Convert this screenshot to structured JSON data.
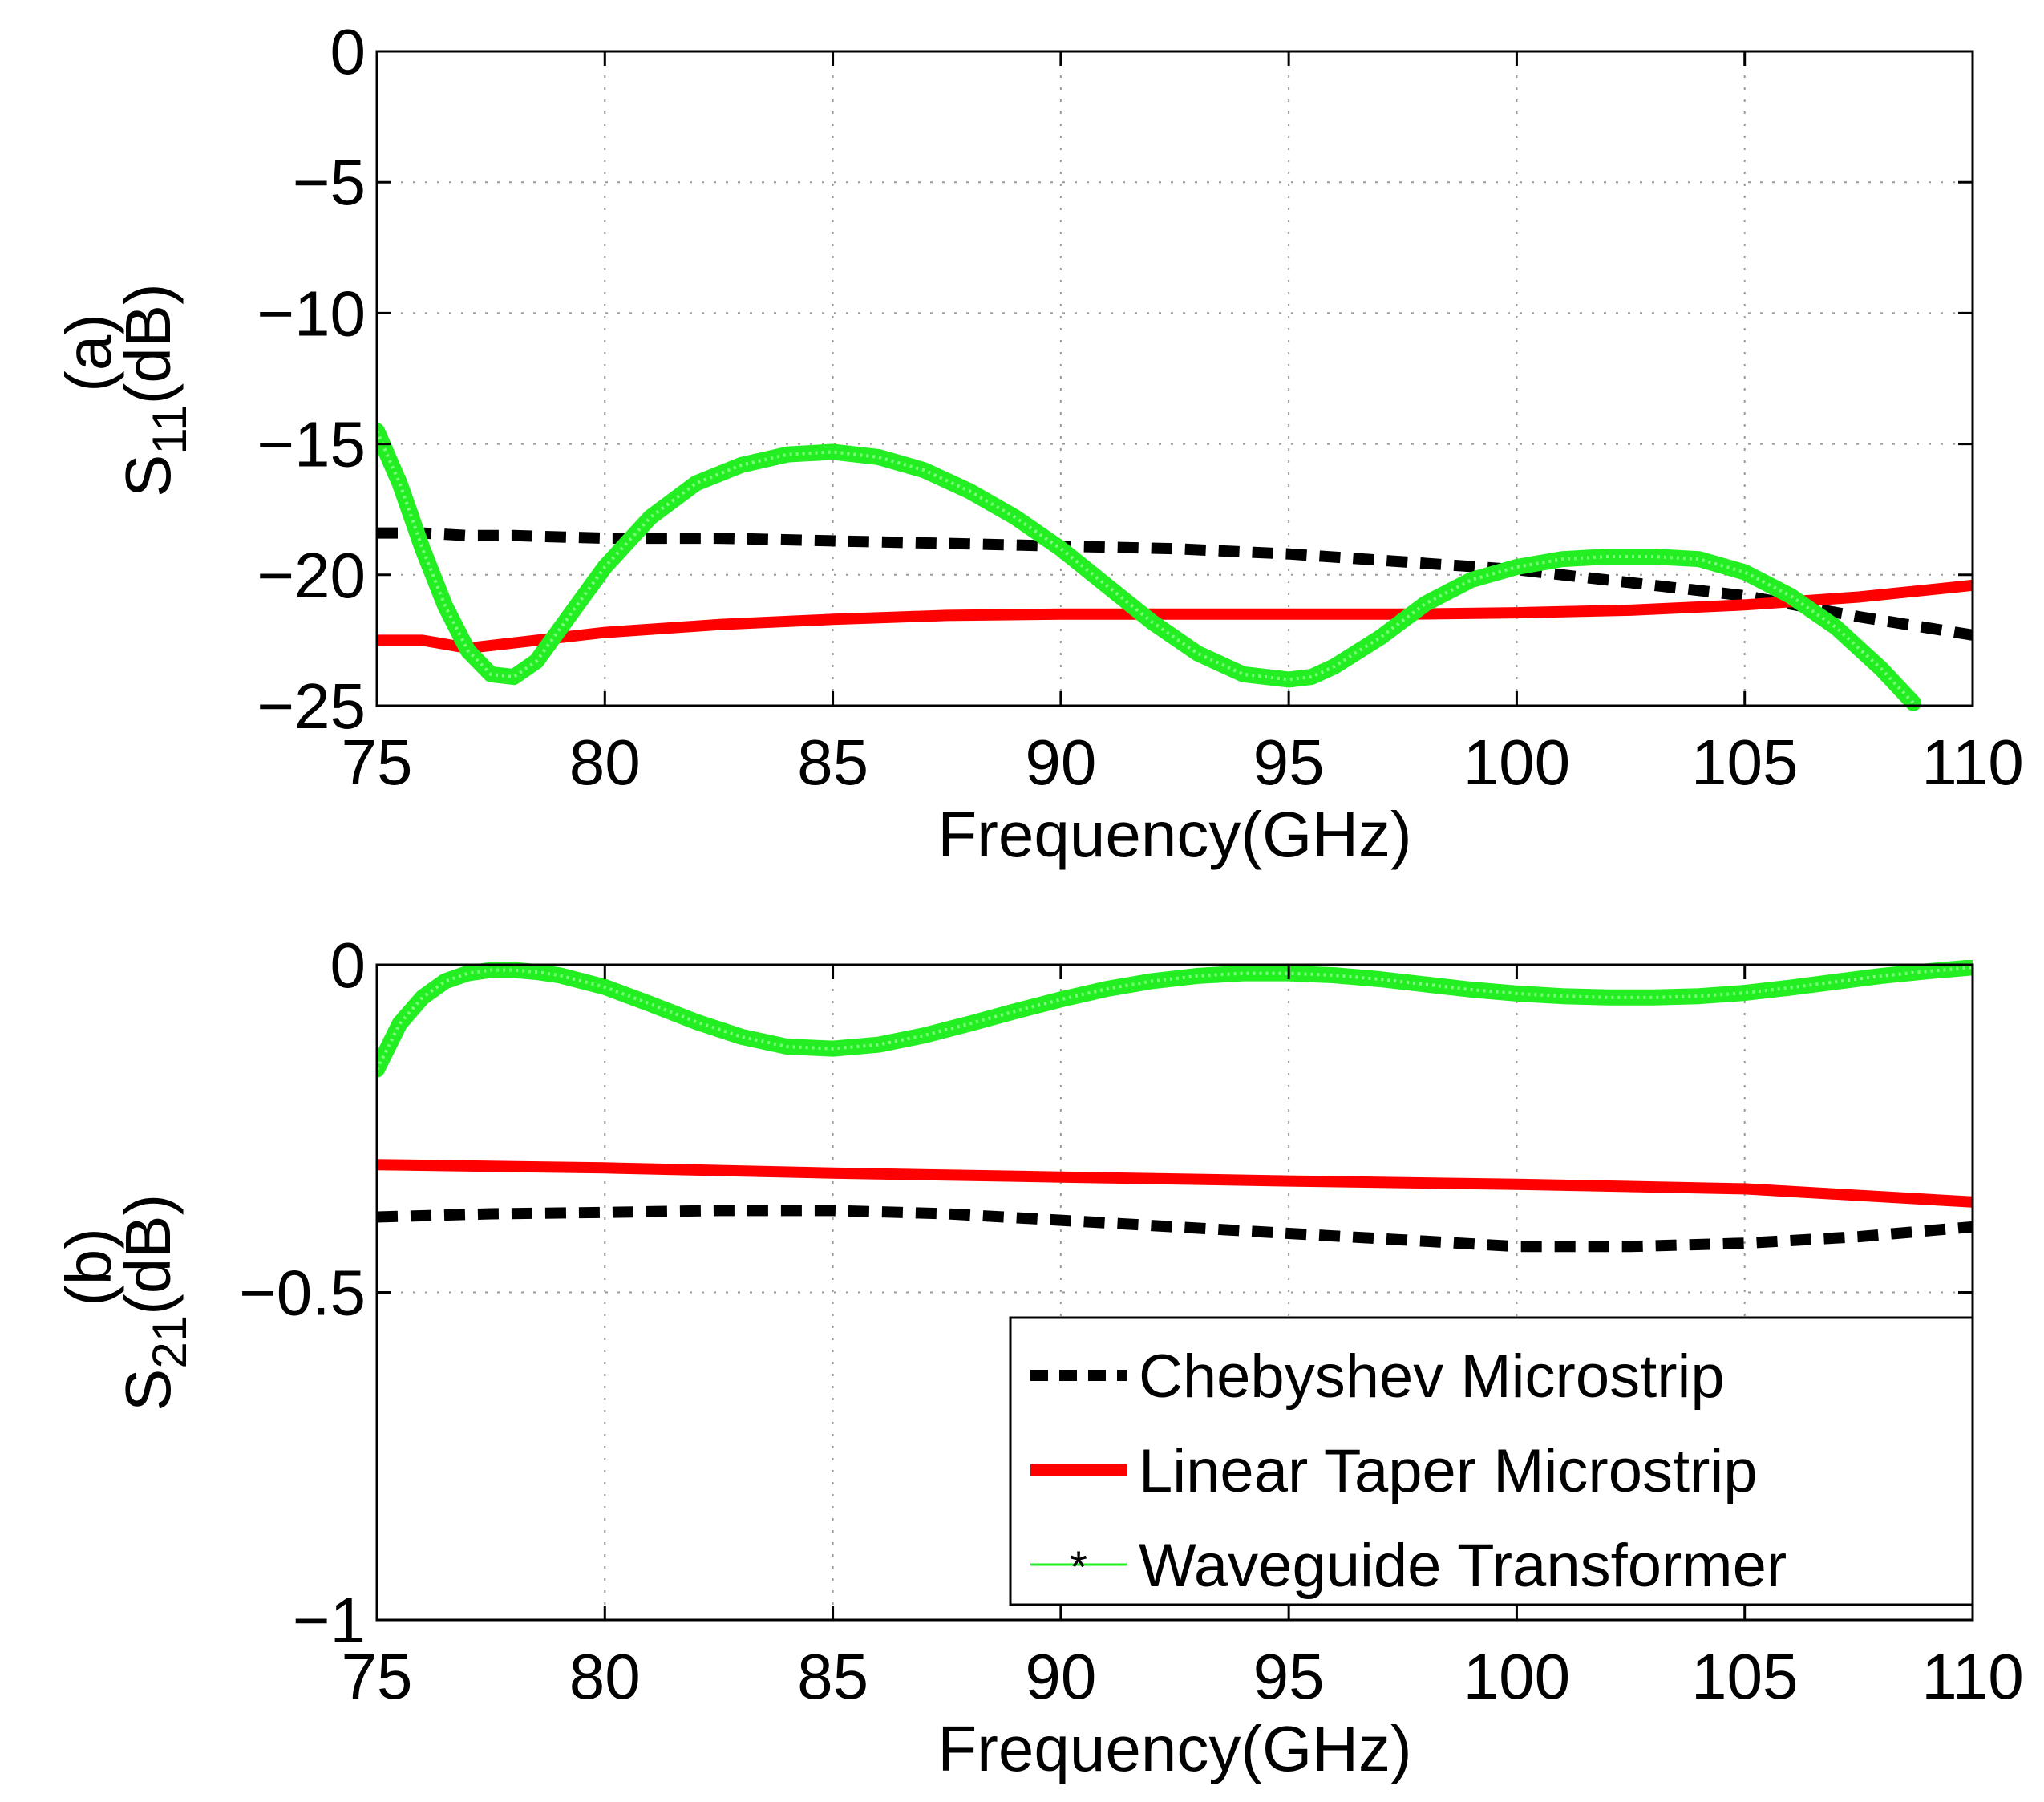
{
  "chart_data": [
    {
      "type": "line",
      "panel_label": "(a)",
      "ylabel_main": "S",
      "ylabel_sub": "11",
      "ylabel_unit": "(dB)",
      "xlabel": "Frequency(GHz)",
      "xlim": [
        75,
        110
      ],
      "ylim": [
        -25,
        0
      ],
      "grid": true,
      "x_ticks": [
        75,
        80,
        85,
        90,
        95,
        100,
        105,
        110
      ],
      "y_ticks": [
        0,
        -5,
        -10,
        -15,
        -20,
        -25
      ],
      "x_tick_labels": [
        "75",
        "80",
        "85",
        "90",
        "95",
        "100",
        "105",
        "110"
      ],
      "y_tick_labels": [
        "0",
        "−5",
        "−10",
        "−15",
        "−20",
        "−25"
      ],
      "series": [
        {
          "name": "Chebyshev Microstrip",
          "color": "#000000",
          "style": "dashed",
          "x": [
            75,
            76,
            77,
            78,
            80,
            82.5,
            85,
            87.5,
            90,
            92.5,
            95,
            97.5,
            100,
            102.5,
            105,
            107.5,
            110
          ],
          "y": [
            -18.4,
            -18.4,
            -18.5,
            -18.5,
            -18.6,
            -18.6,
            -18.7,
            -18.8,
            -18.9,
            -19.0,
            -19.2,
            -19.5,
            -19.8,
            -20.3,
            -20.8,
            -21.6,
            -22.3
          ]
        },
        {
          "name": "Linear Taper Microstrip",
          "color": "#ff0000",
          "style": "solid",
          "x": [
            75,
            76,
            77,
            78,
            79,
            80,
            82.5,
            85,
            87.5,
            90,
            92.5,
            95,
            97.5,
            100,
            102.5,
            105,
            107.5,
            110
          ],
          "y": [
            -22.5,
            -22.5,
            -22.8,
            -22.6,
            -22.4,
            -22.2,
            -21.9,
            -21.7,
            -21.55,
            -21.5,
            -21.5,
            -21.5,
            -21.5,
            -21.45,
            -21.35,
            -21.15,
            -20.85,
            -20.4
          ]
        },
        {
          "name": "Waveguide Transformer",
          "color": "#22ee22",
          "style": "solid-star",
          "x": [
            75,
            75.5,
            76,
            76.5,
            77,
            77.5,
            78,
            78.5,
            79,
            80,
            81,
            82,
            83,
            84,
            85,
            86,
            87,
            88,
            89,
            90,
            91,
            92,
            93,
            94,
            95,
            95.5,
            96,
            97,
            98,
            99,
            100,
            101,
            102,
            103,
            104,
            105,
            106,
            107,
            108,
            108.7
          ],
          "y": [
            -14.5,
            -16.5,
            -19.0,
            -21.2,
            -22.9,
            -23.8,
            -23.9,
            -23.3,
            -22.1,
            -19.7,
            -17.8,
            -16.5,
            -15.8,
            -15.4,
            -15.3,
            -15.5,
            -16.0,
            -16.8,
            -17.8,
            -19.0,
            -20.4,
            -21.8,
            -23.0,
            -23.8,
            -24.0,
            -23.9,
            -23.5,
            -22.4,
            -21.1,
            -20.2,
            -19.7,
            -19.4,
            -19.3,
            -19.3,
            -19.4,
            -19.9,
            -20.8,
            -22.0,
            -23.6,
            -24.9
          ]
        }
      ]
    },
    {
      "type": "line",
      "panel_label": "(b)",
      "ylabel_main": "S",
      "ylabel_sub": "21",
      "ylabel_unit": "(dB)",
      "xlabel": "Frequency(GHz)",
      "xlim": [
        75,
        110
      ],
      "ylim": [
        -1,
        0
      ],
      "grid": true,
      "x_ticks": [
        75,
        80,
        85,
        90,
        95,
        100,
        105,
        110
      ],
      "y_ticks": [
        0,
        -0.5,
        -1
      ],
      "x_tick_labels": [
        "75",
        "80",
        "85",
        "90",
        "95",
        "100",
        "105",
        "110"
      ],
      "y_tick_labels": [
        "0",
        "−0.5",
        "−1"
      ],
      "legend_position": "bottom-right",
      "series": [
        {
          "name": "Chebyshev Microstrip",
          "color": "#000000",
          "style": "dashed",
          "x": [
            75,
            77.5,
            80,
            82.5,
            85,
            87.5,
            90,
            92.5,
            95,
            97.5,
            100,
            102.5,
            105,
            107.5,
            110
          ],
          "y": [
            -0.385,
            -0.38,
            -0.378,
            -0.375,
            -0.375,
            -0.38,
            -0.39,
            -0.4,
            -0.41,
            -0.42,
            -0.43,
            -0.43,
            -0.425,
            -0.415,
            -0.4
          ]
        },
        {
          "name": "Linear Taper Microstrip",
          "color": "#ff0000",
          "style": "solid",
          "x": [
            75,
            80,
            85,
            90,
            95,
            100,
            105,
            110
          ],
          "y": [
            -0.305,
            -0.31,
            -0.318,
            -0.324,
            -0.33,
            -0.335,
            -0.342,
            -0.362
          ]
        },
        {
          "name": "Waveguide Transformer",
          "color": "#22ee22",
          "style": "solid-star",
          "x": [
            75,
            75.5,
            76,
            76.5,
            77,
            77.5,
            78,
            78.5,
            79,
            80,
            81,
            82,
            83,
            84,
            85,
            86,
            87,
            88,
            89,
            90,
            91,
            92,
            93,
            94,
            95,
            96,
            97,
            98,
            99,
            100,
            101,
            102,
            103,
            104,
            105,
            106,
            107,
            108,
            109,
            110
          ],
          "y": [
            -0.16,
            -0.09,
            -0.05,
            -0.025,
            -0.013,
            -0.008,
            -0.008,
            -0.011,
            -0.016,
            -0.034,
            -0.06,
            -0.087,
            -0.11,
            -0.125,
            -0.128,
            -0.122,
            -0.108,
            -0.09,
            -0.071,
            -0.053,
            -0.037,
            -0.025,
            -0.017,
            -0.013,
            -0.013,
            -0.016,
            -0.022,
            -0.03,
            -0.038,
            -0.044,
            -0.048,
            -0.05,
            -0.05,
            -0.048,
            -0.043,
            -0.035,
            -0.026,
            -0.017,
            -0.01,
            -0.004
          ]
        }
      ]
    }
  ],
  "legend": {
    "items": [
      {
        "label": "Chebyshev Microstrip",
        "color": "#000000",
        "style": "dashed"
      },
      {
        "label": "Linear Taper Microstrip",
        "color": "#ff0000",
        "style": "solid"
      },
      {
        "label": "Waveguide Transformer",
        "color": "#22ee22",
        "style": "solid-star"
      }
    ]
  }
}
